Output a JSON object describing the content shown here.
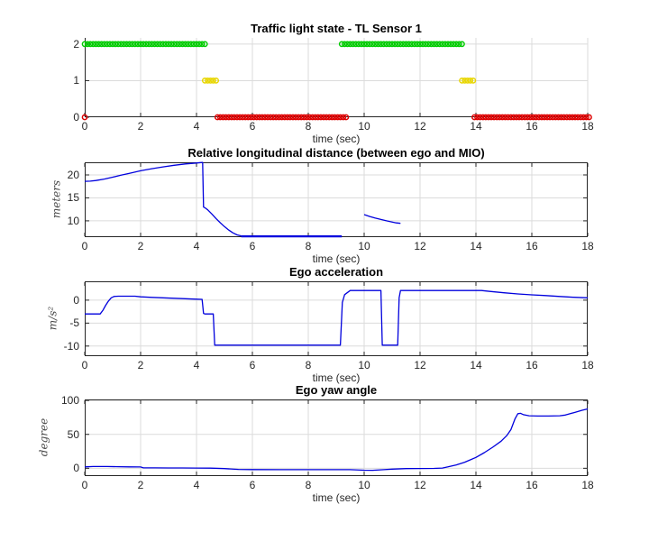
{
  "figure": {
    "background": "#ffffff",
    "axis_color": "#262626",
    "grid_color": "#dbdbdb"
  },
  "chart_data": [
    {
      "id": "traffic-light-state",
      "type": "scatter",
      "title": "Traffic light state - TL Sensor 1",
      "xlabel": "time (sec)",
      "ylabel": "",
      "xlim": [
        0,
        18
      ],
      "ylim": [
        0,
        2.17
      ],
      "xticks": [
        0,
        2,
        4,
        6,
        8,
        10,
        12,
        14,
        16,
        18
      ],
      "yticks": [
        0,
        1,
        2
      ],
      "grid": true,
      "box": false,
      "marker": "open-circle",
      "series": [
        {
          "name": "green-state",
          "color": "#00cc00",
          "y": 2,
          "step": 0.1,
          "segments": [
            [
              0,
              4.25
            ],
            [
              9.2,
              13.45
            ]
          ],
          "points": []
        },
        {
          "name": "yellow-state",
          "color": "#e8d600",
          "y": 1,
          "step": 0.1,
          "segments": [
            [
              4.3,
              4.7
            ],
            [
              13.5,
              13.9
            ]
          ],
          "points": []
        },
        {
          "name": "red-state",
          "color": "#dd0000",
          "y": 0,
          "step": 0.1,
          "segments": [
            [
              4.75,
              9.3
            ],
            [
              13.95,
              18
            ]
          ],
          "points": [
            0
          ]
        }
      ]
    },
    {
      "id": "relative-longitudinal-distance",
      "type": "line",
      "title": "Relative longitudinal distance (between ego and MIO)",
      "xlabel": "time (sec)",
      "ylabel": "meters",
      "xlim": [
        0,
        18
      ],
      "ylim": [
        6.45,
        22.75
      ],
      "xticks": [
        0,
        2,
        4,
        6,
        8,
        10,
        12,
        14,
        16,
        18
      ],
      "yticks": [
        10,
        15,
        20
      ],
      "grid": true,
      "box": true,
      "color": "#0000dd",
      "lines": [
        {
          "w": 1.3,
          "pts": [
            [
              0,
              18.6
            ],
            [
              0.2,
              18.65
            ],
            [
              0.4,
              18.78
            ],
            [
              0.7,
              19.1
            ],
            [
              1,
              19.5
            ],
            [
              1.3,
              19.95
            ],
            [
              1.6,
              20.35
            ],
            [
              2,
              20.9
            ],
            [
              2.4,
              21.35
            ],
            [
              2.8,
              21.75
            ],
            [
              3.2,
              22.1
            ],
            [
              3.6,
              22.4
            ],
            [
              4,
              22.6
            ],
            [
              4.15,
              22.7
            ],
            [
              4.22,
              22.73
            ],
            [
              4.25,
              13.0
            ],
            [
              4.3,
              12.85
            ],
            [
              4.4,
              12.4
            ],
            [
              4.55,
              11.5
            ],
            [
              4.7,
              10.5
            ],
            [
              4.85,
              9.6
            ],
            [
              5,
              8.75
            ],
            [
              5.15,
              8.0
            ],
            [
              5.3,
              7.4
            ],
            [
              5.45,
              6.95
            ],
            [
              5.6,
              6.72
            ]
          ]
        },
        {
          "w": 2.2,
          "pts": [
            [
              5.6,
              6.62
            ],
            [
              9.2,
              6.62
            ]
          ]
        },
        {
          "w": 1.3,
          "pts": [
            [
              10,
              11.35
            ],
            [
              10.2,
              10.95
            ],
            [
              10.4,
              10.6
            ],
            [
              10.6,
              10.3
            ],
            [
              10.8,
              10.0
            ],
            [
              11,
              9.75
            ],
            [
              11.15,
              9.55
            ],
            [
              11.3,
              9.45
            ]
          ]
        }
      ]
    },
    {
      "id": "ego-acceleration",
      "type": "line",
      "title": "Ego acceleration",
      "xlabel": "time (sec)",
      "ylabel": "m/s²",
      "xlim": [
        0,
        18
      ],
      "ylim": [
        -12.2,
        4.1
      ],
      "xticks": [
        0,
        2,
        4,
        6,
        8,
        10,
        12,
        14,
        16,
        18
      ],
      "yticks": [
        -10,
        -5,
        0
      ],
      "grid": true,
      "box": true,
      "color": "#0000dd",
      "lines": [
        {
          "w": 1.3,
          "pts": [
            [
              0,
              -3
            ],
            [
              0.55,
              -3
            ],
            [
              0.65,
              -2.2
            ],
            [
              0.75,
              -1.1
            ],
            [
              0.85,
              -0.2
            ],
            [
              0.95,
              0.5
            ],
            [
              1.05,
              0.8
            ],
            [
              1.2,
              0.85
            ],
            [
              1.8,
              0.85
            ],
            [
              2,
              0.72
            ],
            [
              2.4,
              0.6
            ],
            [
              2.8,
              0.5
            ],
            [
              3.2,
              0.4
            ],
            [
              3.6,
              0.3
            ],
            [
              4,
              0.22
            ],
            [
              4.2,
              0.18
            ],
            [
              4.25,
              -2.9
            ],
            [
              4.3,
              -3
            ],
            [
              4.6,
              -3
            ],
            [
              4.65,
              -9.8
            ],
            [
              9.15,
              -9.8
            ],
            [
              9.22,
              -0.5
            ],
            [
              9.3,
              1.2
            ],
            [
              9.5,
              2.1
            ],
            [
              10.6,
              2.1
            ],
            [
              10.65,
              -9.8
            ],
            [
              11.2,
              -9.8
            ],
            [
              11.25,
              0.5
            ],
            [
              11.3,
              2.1
            ],
            [
              14.2,
              2.1
            ],
            [
              14.5,
              1.9
            ],
            [
              15,
              1.6
            ],
            [
              15.5,
              1.35
            ],
            [
              16,
              1.15
            ],
            [
              16.5,
              1.0
            ],
            [
              17,
              0.8
            ],
            [
              17.5,
              0.62
            ],
            [
              18,
              0.5
            ]
          ]
        }
      ]
    },
    {
      "id": "ego-yaw-angle",
      "type": "line",
      "title": "Ego yaw angle",
      "xlabel": "time (sec)",
      "ylabel": "degree",
      "xlim": [
        0,
        18
      ],
      "ylim": [
        -11.5,
        101.5
      ],
      "xticks": [
        0,
        2,
        4,
        6,
        8,
        10,
        12,
        14,
        16,
        18
      ],
      "yticks": [
        0,
        50,
        100
      ],
      "grid": true,
      "box": true,
      "color": "#0000dd",
      "lines": [
        {
          "w": 1.3,
          "pts": [
            [
              0,
              2
            ],
            [
              0.3,
              2.6
            ],
            [
              0.8,
              2.6
            ],
            [
              1.2,
              2.3
            ],
            [
              1.6,
              2.0
            ],
            [
              2,
              1.9
            ],
            [
              2.1,
              0.6
            ],
            [
              2.5,
              0.6
            ],
            [
              3,
              0.5
            ],
            [
              3.5,
              0.4
            ],
            [
              4,
              0.3
            ],
            [
              4.5,
              0.2
            ],
            [
              5,
              -0.5
            ],
            [
              5.5,
              -1.6
            ],
            [
              6,
              -1.9
            ],
            [
              7,
              -2.0
            ],
            [
              8,
              -2.0
            ],
            [
              9,
              -2.0
            ],
            [
              9.5,
              -2.1
            ],
            [
              10,
              -2.8
            ],
            [
              10.3,
              -3.0
            ],
            [
              10.7,
              -2.0
            ],
            [
              11,
              -1.2
            ],
            [
              11.5,
              -0.5
            ],
            [
              12,
              -0.3
            ],
            [
              12.5,
              -0.2
            ],
            [
              12.8,
              0.3
            ],
            [
              13,
              2
            ],
            [
              13.3,
              5
            ],
            [
              13.6,
              9
            ],
            [
              14,
              16
            ],
            [
              14.3,
              23
            ],
            [
              14.6,
              31
            ],
            [
              14.9,
              40
            ],
            [
              15.1,
              48
            ],
            [
              15.25,
              57
            ],
            [
              15.4,
              73
            ],
            [
              15.5,
              80.5
            ],
            [
              15.6,
              81
            ],
            [
              15.7,
              79
            ],
            [
              15.9,
              77.5
            ],
            [
              16.2,
              77
            ],
            [
              16.6,
              77
            ],
            [
              17,
              77.5
            ],
            [
              17.2,
              78.5
            ],
            [
              17.5,
              82
            ],
            [
              17.8,
              85.5
            ],
            [
              18,
              87.5
            ]
          ]
        }
      ]
    }
  ]
}
